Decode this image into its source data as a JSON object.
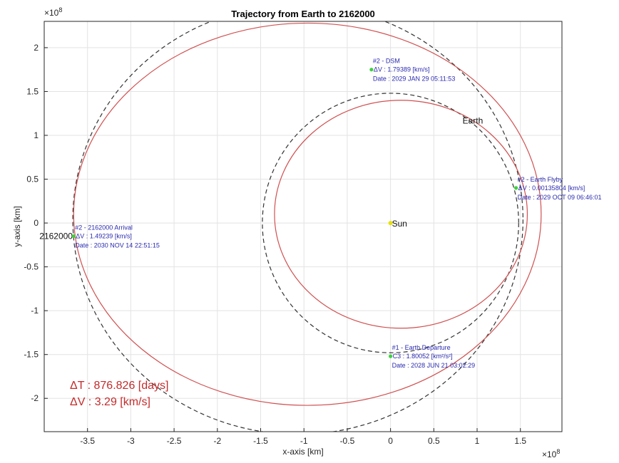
{
  "chart_data": {
    "type": "line",
    "title": "Trajectory from Earth to 2162000",
    "xlabel": "x-axis [km]",
    "ylabel": "y-axis [km]",
    "exponent": "×10",
    "exponent_power": "8",
    "xlim": [
      -4.0,
      1.98
    ],
    "ylim": [
      -2.38,
      2.3
    ],
    "xticks": [
      -3.5,
      -3,
      -2.5,
      -2,
      -1.5,
      -1,
      -0.5,
      0,
      0.5,
      1,
      1.5
    ],
    "xtick_labels": [
      "-3.5",
      "-3",
      "-2.5",
      "-2",
      "-1.5",
      "-1",
      "-0.5",
      "0",
      "0.5",
      "1",
      "1.5"
    ],
    "yticks": [
      -2,
      -1.5,
      -1,
      -0.5,
      0,
      0.5,
      1,
      1.5,
      2
    ],
    "ytick_labels": [
      "-2",
      "-1.5",
      "-1",
      "-0.5",
      "0",
      "0.5",
      "1",
      "1.5",
      "2"
    ],
    "grid": true,
    "orbits": [
      {
        "kind": "dashed",
        "color": "#333333",
        "cx": 0.0,
        "cy": 0.0,
        "rx": 1.48,
        "ry": 1.48
      },
      {
        "kind": "dashed",
        "color": "#333333",
        "cx": -1.07,
        "cy": 0.04,
        "rx": 2.6,
        "ry": 2.45
      },
      {
        "kind": "transfer",
        "color": "#d05050",
        "cx": -0.96,
        "cy": 0.1,
        "rx": 2.7,
        "ry": 2.18
      },
      {
        "kind": "transfer",
        "color": "#d05050",
        "cx": 0.12,
        "cy": 0.1,
        "rx": 1.46,
        "ry": 1.3
      }
    ],
    "bodies": [
      {
        "label": "Sun",
        "x": 0.0,
        "y": 0.0,
        "color": "#e8e000"
      },
      {
        "label": "Earth",
        "x": 0.98,
        "y": 1.15,
        "color": "#111111"
      },
      {
        "label": "2162000",
        "x": -3.66,
        "y": -0.15,
        "color": "#111111"
      }
    ],
    "maneuvers": [
      {
        "x": 0.0,
        "y": -1.52,
        "lines": [
          "#1 - Earth Departure",
          "C3 : 1.80052 [km²/s²]",
          "Date : 2028 JUN 21 03:02:29"
        ]
      },
      {
        "x": -0.22,
        "y": 1.75,
        "lines": [
          "#2 - DSM",
          "ΔV : 1.79389 [km/s]",
          "Date : 2029 JAN 29 05:11:53"
        ]
      },
      {
        "x": 1.45,
        "y": 0.4,
        "lines": [
          "#2 - Earth Flyby",
          "ΔV : 0.00135804 [km/s]",
          "Date : 2029 OCT 09 06:46:01"
        ]
      },
      {
        "x": -3.66,
        "y": -0.15,
        "lines": [
          "#2 - 2162000 Arrival",
          "ΔV : 1.49239 [km/s]",
          "Date : 2030 NOV 14 22:51:15"
        ]
      }
    ],
    "summary": {
      "delta_t": "ΔT : 876.826 [days]",
      "delta_v": "ΔV : 3.29 [km/s]"
    }
  }
}
